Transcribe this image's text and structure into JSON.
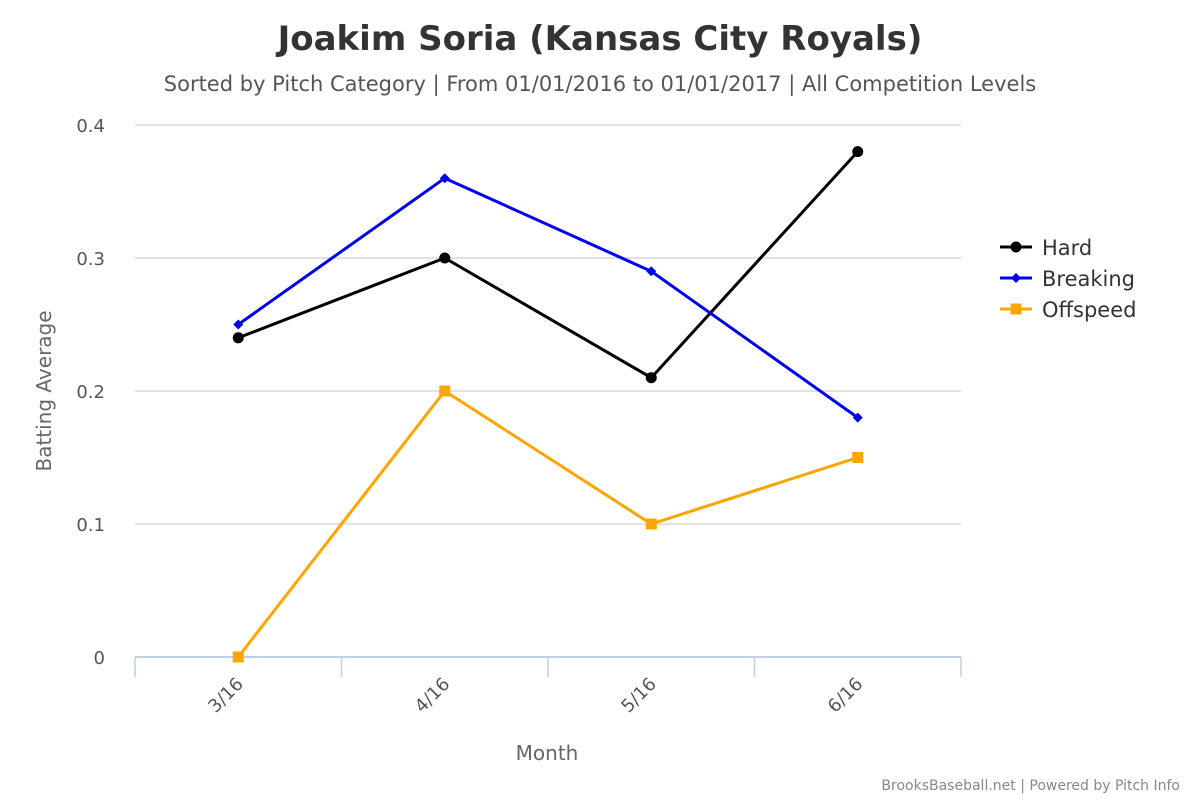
{
  "chart_data": {
    "type": "line",
    "title": "Joakim Soria (Kansas City Royals)",
    "subtitle": "Sorted by Pitch Category | From 01/01/2016 to 01/01/2017 | All Competition Levels",
    "xlabel": "Month",
    "ylabel": "Batting Average",
    "categories": [
      "3/16",
      "4/16",
      "5/16",
      "6/16"
    ],
    "ylim": [
      0,
      0.4
    ],
    "yticks": [
      "0",
      "0.1",
      "0.2",
      "0.3",
      "0.4"
    ],
    "grid": true,
    "legend_position": "right",
    "series": [
      {
        "name": "Hard",
        "color": "#000000",
        "marker": "circle",
        "values": [
          0.24,
          0.3,
          0.21,
          0.38
        ]
      },
      {
        "name": "Breaking",
        "color": "#0000ee",
        "marker": "diamond",
        "values": [
          0.25,
          0.36,
          0.29,
          0.18
        ]
      },
      {
        "name": "Offspeed",
        "color": "#ffa500",
        "marker": "square",
        "values": [
          0.0,
          0.2,
          0.1,
          0.15
        ]
      }
    ],
    "credit": "BrooksBaseball.net | Powered by Pitch Info"
  }
}
